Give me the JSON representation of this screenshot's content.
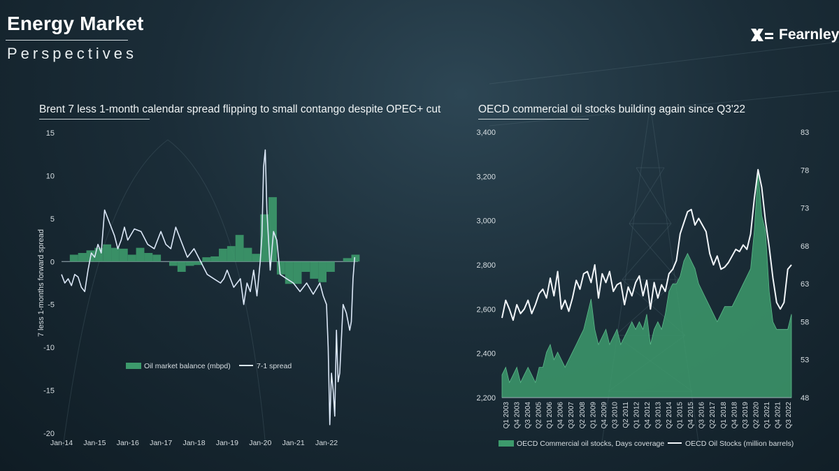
{
  "header": {
    "title": "Energy Market",
    "subtitle": "Perspectives",
    "logo_text": "Fearnleys"
  },
  "colors": {
    "green": "#3d9a6c",
    "spread_line": "#dbe7f7",
    "axis_text": "#d7dee2"
  },
  "chart_data": [
    {
      "type": "bar",
      "title": "Brent 7 less 1-month calendar spread flipping to small contango despite OPEC+ cut",
      "ylabel": "7 less 1-months forward spread",
      "ylim": [
        -20,
        15
      ],
      "yticks": [
        "15",
        "10",
        "5",
        "0",
        "-5",
        "-10",
        "-15",
        "-20"
      ],
      "xlabels": [
        "Jan-14",
        "Jan-15",
        "Jan-16",
        "Jan-17",
        "Jan-18",
        "Jan-19",
        "Jan-20",
        "Jan-21",
        "Jan-22"
      ],
      "legend": [
        "Oil market balance (mbpd)",
        "7-1 spread"
      ],
      "legend_position": "bottom",
      "series": [
        {
          "name": "Oil market balance (mbpd)",
          "kind": "quarterly-bars",
          "x": [
            2014.0,
            2014.25,
            2014.5,
            2014.75,
            2015.0,
            2015.25,
            2015.5,
            2015.75,
            2016.0,
            2016.25,
            2016.5,
            2016.75,
            2017.0,
            2017.25,
            2017.5,
            2017.75,
            2018.0,
            2018.25,
            2018.5,
            2018.75,
            2019.0,
            2019.25,
            2019.5,
            2019.75,
            2020.0,
            2020.25,
            2020.5,
            2020.75,
            2021.0,
            2021.25,
            2021.5,
            2021.75,
            2022.0,
            2022.25,
            2022.5,
            2022.75
          ],
          "values": [
            0,
            0.8,
            1.0,
            1.3,
            1.6,
            2.0,
            1.6,
            1.5,
            0.8,
            1.6,
            1.0,
            0.8,
            0,
            -0.5,
            -1.2,
            -0.5,
            -0.4,
            0.5,
            0.6,
            1.5,
            1.8,
            3.1,
            1.6,
            0.9,
            5.5,
            7.5,
            -1.5,
            -2.6,
            -2.6,
            -1.2,
            -2.0,
            -2.4,
            -1.2,
            0,
            0.4,
            0.8
          ]
        },
        {
          "name": "7-1 spread",
          "kind": "line",
          "x": [
            2014.0,
            2014.1,
            2014.2,
            2014.3,
            2014.4,
            2014.5,
            2014.6,
            2014.7,
            2014.8,
            2014.9,
            2015.0,
            2015.1,
            2015.2,
            2015.3,
            2015.45,
            2015.6,
            2015.7,
            2015.8,
            2015.9,
            2016.0,
            2016.2,
            2016.4,
            2016.6,
            2016.8,
            2017.0,
            2017.15,
            2017.3,
            2017.45,
            2017.6,
            2017.8,
            2018.0,
            2018.2,
            2018.4,
            2018.6,
            2018.8,
            2018.9,
            2019.0,
            2019.2,
            2019.4,
            2019.5,
            2019.6,
            2019.7,
            2019.8,
            2019.9,
            2020.0,
            2020.05,
            2020.1,
            2020.15,
            2020.2,
            2020.3,
            2020.4,
            2020.5,
            2020.6,
            2020.8,
            2021.0,
            2021.2,
            2021.4,
            2021.6,
            2021.8,
            2021.9,
            2022.0,
            2022.05,
            2022.1,
            2022.15,
            2022.2,
            2022.25,
            2022.3,
            2022.35,
            2022.4,
            2022.5,
            2022.6,
            2022.7,
            2022.75,
            2022.8,
            2022.85
          ],
          "values": [
            -1.5,
            -2.5,
            -2.0,
            -2.8,
            -1.5,
            -1.8,
            -3.0,
            -3.5,
            -1.0,
            1.0,
            0.5,
            2.0,
            1.0,
            6.0,
            4.5,
            3.0,
            1.5,
            2.5,
            4.0,
            2.5,
            3.8,
            3.5,
            2.0,
            1.5,
            3.5,
            2.0,
            1.5,
            4.0,
            2.5,
            0.5,
            1.5,
            0,
            -1.5,
            -2.0,
            -2.5,
            -2.0,
            -1.0,
            -3.0,
            -2.0,
            -5.0,
            -2.5,
            -3.5,
            -1.0,
            -4.0,
            0,
            3.0,
            11.0,
            13.0,
            6.0,
            -1.0,
            3.5,
            2.5,
            -1.5,
            -2.0,
            -2.5,
            -3.5,
            -2.5,
            -3.8,
            -2.5,
            -4.0,
            -5.0,
            -10.0,
            -19.0,
            -13.0,
            -15.0,
            -18.0,
            -8.0,
            -14.0,
            -13.0,
            -5.0,
            -6.0,
            -8.0,
            -7.0,
            -2.0,
            0.5
          ]
        }
      ]
    },
    {
      "type": "area+line",
      "title": "OECD commercial oil stocks building again since Q3'22",
      "ylim_left": [
        2200,
        3400
      ],
      "ylim_right": [
        48,
        83
      ],
      "yticks_left": [
        "3,400",
        "3,200",
        "3,000",
        "2,800",
        "2,600",
        "2,400",
        "2,200"
      ],
      "yticks_right": [
        "83",
        "78",
        "73",
        "68",
        "63",
        "58",
        "53",
        "48"
      ],
      "xlabels": [
        "Q1 2003",
        "Q4 2003",
        "Q3 2004",
        "Q2 2005",
        "Q1 2006",
        "Q4 2006",
        "Q3 2007",
        "Q2 2008",
        "Q1 2009",
        "Q4 2009",
        "Q3 2010",
        "Q2 2011",
        "Q1 2012",
        "Q4 2012",
        "Q3 2013",
        "Q2 2014",
        "Q1 2015",
        "Q4 2015",
        "Q3 2016",
        "Q2 2017",
        "Q1 2018",
        "Q4 2018",
        "Q3 2019",
        "Q2 2020",
        "Q1 2021",
        "Q4 2021",
        "Q3 2022"
      ],
      "legend": [
        "OECD Commercial oil stocks, Days coverage",
        "OECD Oil Stocks (million barrels)"
      ],
      "legend_position": "bottom",
      "series": [
        {
          "name": "OECD Commercial oil stocks, Days coverage",
          "axis": "right",
          "x": [
            2003.0,
            2003.25,
            2003.5,
            2003.75,
            2004.0,
            2004.25,
            2004.5,
            2004.75,
            2005.0,
            2005.25,
            2005.5,
            2005.75,
            2006.0,
            2006.25,
            2006.5,
            2006.75,
            2007.0,
            2007.25,
            2007.5,
            2007.75,
            2008.0,
            2008.25,
            2008.5,
            2008.75,
            2009.0,
            2009.25,
            2009.5,
            2009.75,
            2010.0,
            2010.25,
            2010.5,
            2010.75,
            2011.0,
            2011.25,
            2011.5,
            2011.75,
            2012.0,
            2012.25,
            2012.5,
            2012.75,
            2013.0,
            2013.25,
            2013.5,
            2013.75,
            2014.0,
            2014.25,
            2014.5,
            2014.75,
            2015.0,
            2015.25,
            2015.5,
            2015.75,
            2016.0,
            2016.25,
            2016.5,
            2016.75,
            2017.0,
            2017.25,
            2017.5,
            2017.75,
            2018.0,
            2018.25,
            2018.5,
            2018.75,
            2019.0,
            2019.25,
            2019.5,
            2019.75,
            2020.0,
            2020.25,
            2020.5,
            2020.75,
            2021.0,
            2021.25,
            2021.5,
            2021.75,
            2022.0,
            2022.25,
            2022.5
          ],
          "values": [
            51,
            52,
            50,
            51,
            52,
            50,
            51,
            52,
            51,
            50,
            52,
            52,
            54,
            55,
            53,
            54,
            53,
            52,
            53,
            54,
            55,
            56,
            57,
            59,
            61,
            57,
            55,
            56,
            57,
            55,
            56,
            57,
            55,
            56,
            57,
            58,
            57,
            58,
            57,
            59,
            55,
            57,
            58,
            57,
            59,
            62,
            63,
            63,
            64,
            66,
            67,
            66,
            65,
            63,
            62,
            61,
            60,
            59,
            58,
            59,
            60,
            60,
            60,
            61,
            62,
            63,
            64,
            65,
            70,
            78,
            72,
            70,
            62,
            58,
            57,
            57,
            57,
            57,
            59
          ]
        },
        {
          "name": "OECD Oil Stocks (million barrels)",
          "axis": "left",
          "x": [
            2003.0,
            2003.25,
            2003.5,
            2003.75,
            2004.0,
            2004.25,
            2004.5,
            2004.75,
            2005.0,
            2005.25,
            2005.5,
            2005.75,
            2006.0,
            2006.25,
            2006.5,
            2006.75,
            2007.0,
            2007.25,
            2007.5,
            2007.75,
            2008.0,
            2008.25,
            2008.5,
            2008.75,
            2009.0,
            2009.25,
            2009.5,
            2009.75,
            2010.0,
            2010.25,
            2010.5,
            2010.75,
            2011.0,
            2011.25,
            2011.5,
            2011.75,
            2012.0,
            2012.25,
            2012.5,
            2012.75,
            2013.0,
            2013.25,
            2013.5,
            2013.75,
            2014.0,
            2014.25,
            2014.5,
            2014.75,
            2015.0,
            2015.25,
            2015.5,
            2015.75,
            2016.0,
            2016.25,
            2016.5,
            2016.75,
            2017.0,
            2017.25,
            2017.5,
            2017.75,
            2018.0,
            2018.25,
            2018.5,
            2018.75,
            2019.0,
            2019.25,
            2019.5,
            2019.75,
            2020.0,
            2020.25,
            2020.5,
            2020.75,
            2021.0,
            2021.25,
            2021.5,
            2021.75,
            2022.0,
            2022.25,
            2022.5
          ],
          "values": [
            2560,
            2640,
            2600,
            2550,
            2620,
            2580,
            2600,
            2640,
            2580,
            2620,
            2670,
            2690,
            2650,
            2740,
            2660,
            2770,
            2600,
            2640,
            2590,
            2650,
            2730,
            2690,
            2760,
            2770,
            2720,
            2800,
            2650,
            2760,
            2720,
            2770,
            2680,
            2710,
            2720,
            2620,
            2700,
            2660,
            2720,
            2750,
            2660,
            2730,
            2600,
            2720,
            2650,
            2710,
            2680,
            2760,
            2780,
            2820,
            2940,
            2990,
            3040,
            3050,
            2980,
            3010,
            2980,
            2950,
            2850,
            2800,
            2840,
            2780,
            2790,
            2810,
            2840,
            2870,
            2860,
            2890,
            2870,
            2940,
            3100,
            3230,
            3150,
            3000,
            2880,
            2740,
            2630,
            2600,
            2630,
            2780,
            2800
          ]
        }
      ]
    }
  ]
}
